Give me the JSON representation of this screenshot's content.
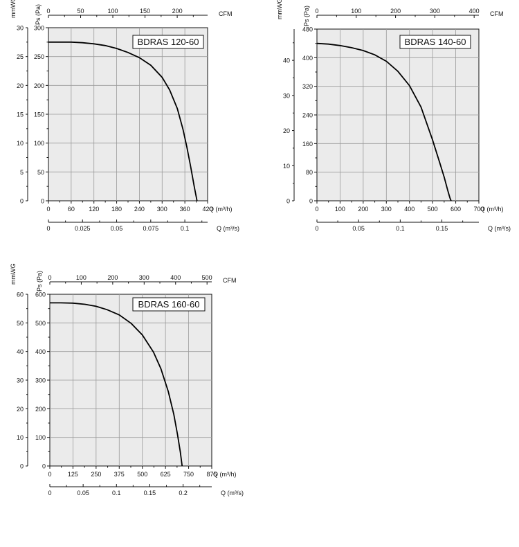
{
  "chart_data": [
    {
      "type": "line",
      "title": "BDRAS 120-60",
      "grid": true,
      "xlabel": "Q (m³/h)",
      "x_ticks": [
        "0",
        "60",
        "120",
        "180",
        "240",
        "300",
        "360",
        "420"
      ],
      "xlim": [
        0,
        420
      ],
      "ylabel": "Ps (Pa)",
      "y_ticks": [
        "0",
        "50",
        "100",
        "150",
        "200",
        "250",
        "300"
      ],
      "ylim": [
        0,
        300
      ],
      "ylabel2": "mmWG",
      "y2_ticks": [
        "0",
        "5",
        "10",
        "15",
        "20",
        "25",
        "30"
      ],
      "top_label": "CFM",
      "top_ticks": [
        "0",
        "50",
        "100",
        "150",
        "200"
      ],
      "top_max": 247.2,
      "bottom2_label": "Q (m³/s)",
      "bottom2_ticks": [
        "0",
        "0.025",
        "0.05",
        "0.075",
        "0.1"
      ],
      "bottom2_max": 0.1167,
      "series": [
        {
          "x": [
            0,
            30,
            60,
            90,
            120,
            150,
            180,
            210,
            240,
            270,
            300,
            320,
            340,
            355,
            365,
            375,
            385,
            392
          ],
          "y": [
            275,
            275,
            275,
            274,
            272,
            269,
            264,
            257,
            248,
            235,
            214,
            192,
            160,
            124,
            94,
            60,
            24,
            0
          ]
        }
      ]
    },
    {
      "type": "line",
      "title": "BDRAS 140-60",
      "grid": true,
      "xlabel": "Q (m³/h)",
      "x_ticks": [
        "0",
        "100",
        "200",
        "300",
        "400",
        "500",
        "600",
        "700"
      ],
      "xlim": [
        0,
        700
      ],
      "ylabel": "Ps (Pa)",
      "y_ticks": [
        "0",
        "80",
        "160",
        "240",
        "320",
        "400",
        "480"
      ],
      "ylim": [
        0,
        480
      ],
      "ylabel2": "mmWG",
      "y2_ticks": [
        "0",
        "10",
        "20",
        "30",
        "40"
      ],
      "y2_max": 48.9,
      "top_label": "CFM",
      "top_ticks": [
        "0",
        "100",
        "200",
        "300",
        "400"
      ],
      "top_max": 412,
      "bottom2_label": "Q (m³/s)",
      "bottom2_ticks": [
        "0",
        "0.05",
        "0.1",
        "0.15"
      ],
      "bottom2_max": 0.1944,
      "series": [
        {
          "x": [
            0,
            50,
            100,
            150,
            200,
            250,
            300,
            350,
            400,
            450,
            500,
            530,
            550,
            565,
            575,
            580
          ],
          "y": [
            440,
            438,
            434,
            428,
            420,
            408,
            390,
            362,
            322,
            262,
            170,
            108,
            66,
            30,
            8,
            0
          ]
        }
      ]
    },
    {
      "type": "line",
      "title": "BDRAS 160-60",
      "grid": true,
      "xlabel": "Q (m³/h)",
      "x_ticks": [
        "0",
        "125",
        "250",
        "375",
        "500",
        "625",
        "750",
        "875"
      ],
      "xlim": [
        0,
        875
      ],
      "ylabel": "Ps (Pa)",
      "y_ticks": [
        "0",
        "100",
        "200",
        "300",
        "400",
        "500",
        "600"
      ],
      "ylim": [
        0,
        600
      ],
      "ylabel2": "mmWG",
      "y2_ticks": [
        "0",
        "10",
        "20",
        "30",
        "40",
        "50",
        "60"
      ],
      "top_label": "CFM",
      "top_ticks": [
        "0",
        "100",
        "200",
        "300",
        "400",
        "500"
      ],
      "top_max": 515,
      "bottom2_label": "Q (m³/s)",
      "bottom2_ticks": [
        "0",
        "0.05",
        "0.1",
        "0.15",
        "0.2"
      ],
      "bottom2_max": 0.243,
      "series": [
        {
          "x": [
            0,
            60,
            125,
            190,
            250,
            310,
            375,
            440,
            500,
            560,
            600,
            640,
            670,
            690,
            705,
            715
          ],
          "y": [
            570,
            570,
            569,
            565,
            558,
            546,
            528,
            498,
            458,
            398,
            340,
            260,
            180,
            110,
            50,
            0
          ]
        }
      ]
    }
  ]
}
